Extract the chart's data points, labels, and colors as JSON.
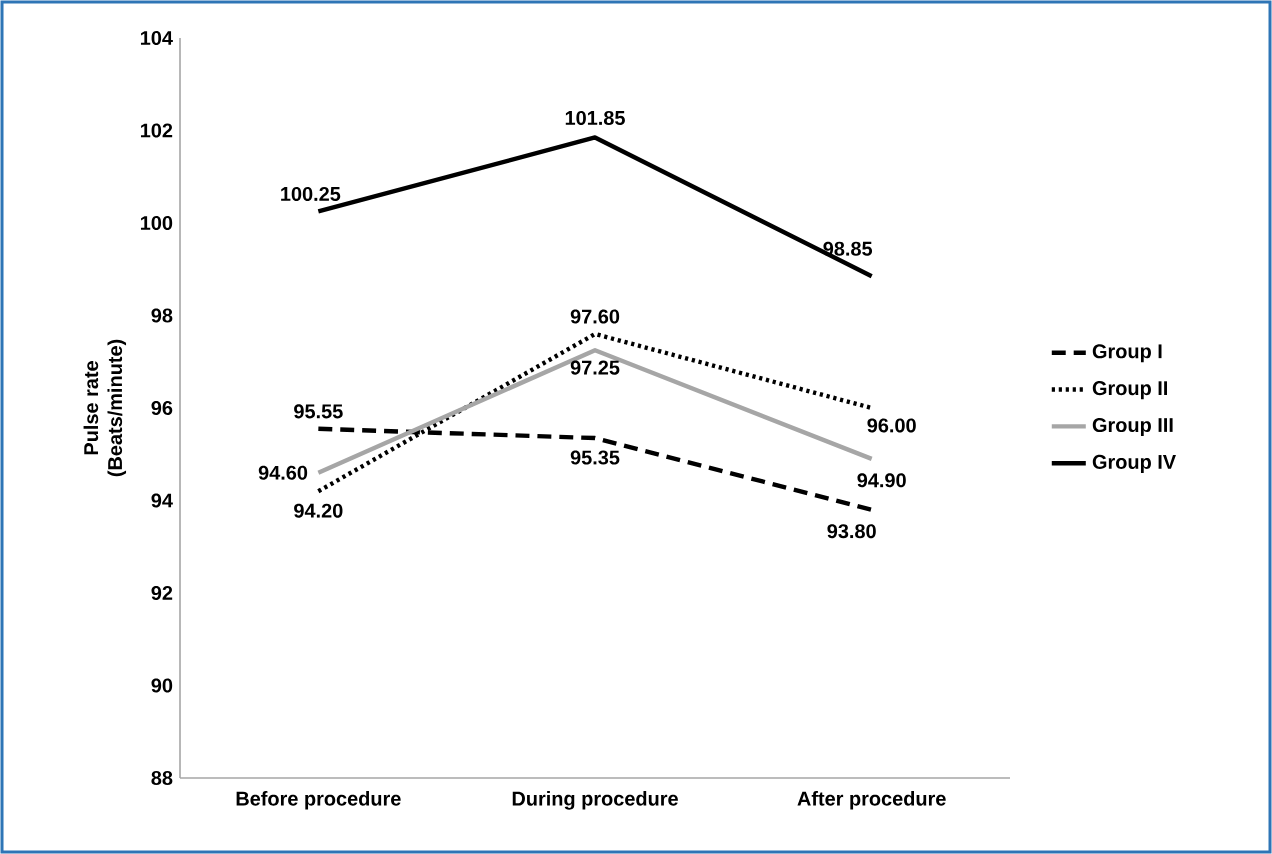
{
  "chart_data": {
    "type": "line",
    "ylabel": "Pulse rate\n(Beats/minute)",
    "categories": [
      "Before procedure",
      "During procedure",
      "After procedure"
    ],
    "ylim": [
      88,
      104
    ],
    "yticks": [
      88,
      90,
      92,
      94,
      96,
      98,
      100,
      102,
      104
    ],
    "legend": "right",
    "grid": false,
    "marker": "none",
    "series": [
      {
        "name": "Group I",
        "color": "#000000",
        "line_style": "dashed",
        "values": [
          95.55,
          95.35,
          93.8
        ],
        "value_labels": [
          "95.55",
          "95.35",
          "93.80"
        ]
      },
      {
        "name": "Group II",
        "color": "#000000",
        "line_style": "dotted",
        "values": [
          94.2,
          97.6,
          96.0
        ],
        "value_labels": [
          "94.20",
          "97.60",
          "96.00"
        ]
      },
      {
        "name": "Group III",
        "color": "#a6a6a6",
        "line_style": "solid",
        "values": [
          94.6,
          97.25,
          94.9
        ],
        "value_labels": [
          "94.60",
          "97.25",
          "94.90"
        ]
      },
      {
        "name": "Group IV",
        "color": "#000000",
        "line_style": "solid",
        "values": [
          100.25,
          101.85,
          98.85
        ],
        "value_labels": [
          "100.25",
          "101.85",
          "98.85"
        ]
      }
    ]
  }
}
